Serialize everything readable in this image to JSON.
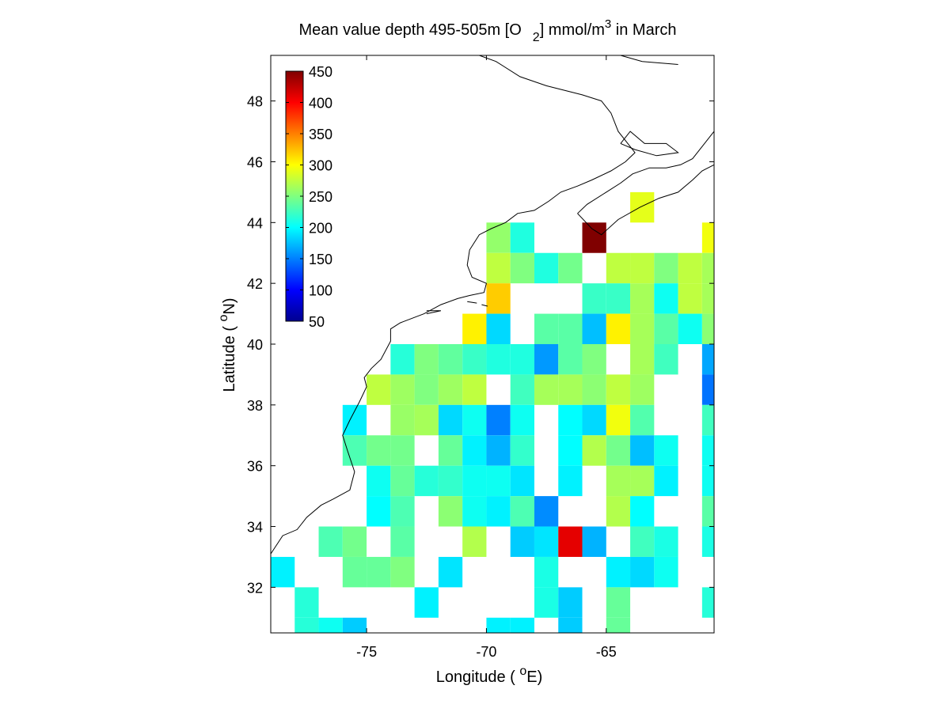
{
  "chart_data": {
    "type": "heatmap",
    "title": {
      "main": "Mean value depth 495-505m [O",
      "sub": "2",
      "units": "] mmol/m",
      "sup": "3",
      "month": " in March"
    },
    "xlabel": {
      "pre": "Longitude ( ",
      "sup": "o",
      "post": "E)"
    },
    "ylabel": {
      "pre": "Latitude ( ",
      "sup": "o",
      "post": "N)"
    },
    "xlim": [
      -79,
      -60.5
    ],
    "ylim": [
      30.5,
      49.5
    ],
    "x_ticks": [
      -75,
      -70,
      -65
    ],
    "x_tick_labels": [
      "-75",
      "-70",
      "-65"
    ],
    "y_ticks": [
      32,
      34,
      36,
      38,
      40,
      42,
      44,
      46,
      48
    ],
    "y_tick_labels": [
      "32",
      "34",
      "36",
      "38",
      "40",
      "42",
      "44",
      "46",
      "48"
    ],
    "colorbar": {
      "min": 50,
      "max": 450,
      "colormap": "jet",
      "ticks": [
        50,
        100,
        150,
        200,
        250,
        300,
        350,
        400,
        450
      ],
      "tick_labels": [
        "50",
        "100",
        "150",
        "200",
        "250",
        "300",
        "350",
        "400",
        "450"
      ],
      "placement": "top-left"
    },
    "grid_resolution_deg": 1,
    "cell_values_by_row_top_to_bottom": [
      {
        "lat_top": 45,
        "cells": [
          [
            -64,
            290
          ]
        ]
      },
      {
        "lat_top": 44,
        "cells": [
          [
            -70,
            258
          ],
          [
            -69,
            212
          ],
          [
            -66,
            450
          ],
          [
            -61,
            295
          ]
        ]
      },
      {
        "lat_top": 43,
        "cells": [
          [
            -70,
            275
          ],
          [
            -69,
            250
          ],
          [
            -68,
            212
          ],
          [
            -67,
            245
          ],
          [
            -65,
            275
          ],
          [
            -64,
            275
          ],
          [
            -63,
            250
          ],
          [
            -62,
            275
          ],
          [
            -61,
            265
          ]
        ]
      },
      {
        "lat_top": 42,
        "cells": [
          [
            -70,
            320
          ],
          [
            -66,
            222
          ],
          [
            -65,
            222
          ],
          [
            -64,
            265
          ],
          [
            -63,
            205
          ],
          [
            -62,
            275
          ],
          [
            -61,
            265
          ]
        ]
      },
      {
        "lat_top": 41,
        "cells": [
          [
            -71,
            305
          ],
          [
            -70,
            185
          ],
          [
            -68,
            235
          ],
          [
            -67,
            235
          ],
          [
            -66,
            175
          ],
          [
            -65,
            305
          ],
          [
            -64,
            265
          ],
          [
            -63,
            235
          ],
          [
            -62,
            205
          ],
          [
            -61,
            255
          ]
        ]
      },
      {
        "lat_top": 40,
        "cells": [
          [
            -74,
            215
          ],
          [
            -73,
            250
          ],
          [
            -72,
            238
          ],
          [
            -71,
            222
          ],
          [
            -70,
            212
          ],
          [
            -69,
            212
          ],
          [
            -68,
            160
          ],
          [
            -67,
            235
          ],
          [
            -66,
            250
          ],
          [
            -64,
            265
          ],
          [
            -63,
            225
          ],
          [
            -61,
            165
          ]
        ]
      },
      {
        "lat_top": 39,
        "cells": [
          [
            -75,
            275
          ],
          [
            -74,
            262
          ],
          [
            -73,
            250
          ],
          [
            -72,
            262
          ],
          [
            -71,
            275
          ],
          [
            -69,
            225
          ],
          [
            -68,
            265
          ],
          [
            -67,
            265
          ],
          [
            -66,
            255
          ],
          [
            -65,
            275
          ],
          [
            -64,
            262
          ],
          [
            -61,
            145
          ]
        ]
      },
      {
        "lat_top": 38,
        "cells": [
          [
            -76,
            195
          ],
          [
            -74,
            260
          ],
          [
            -73,
            265
          ],
          [
            -72,
            185
          ],
          [
            -71,
            205
          ],
          [
            -70,
            150
          ],
          [
            -69,
            205
          ],
          [
            -67,
            200
          ],
          [
            -66,
            185
          ],
          [
            -65,
            295
          ],
          [
            -64,
            232
          ],
          [
            -61,
            225
          ]
        ]
      },
      {
        "lat_top": 37,
        "cells": [
          [
            -76,
            230
          ],
          [
            -75,
            245
          ],
          [
            -74,
            245
          ],
          [
            -72,
            240
          ],
          [
            -71,
            195
          ],
          [
            -70,
            170
          ],
          [
            -69,
            220
          ],
          [
            -67,
            200
          ],
          [
            -66,
            270
          ],
          [
            -65,
            245
          ],
          [
            -64,
            175
          ],
          [
            -63,
            205
          ],
          [
            -61,
            205
          ]
        ]
      },
      {
        "lat_top": 36,
        "cells": [
          [
            -75,
            205
          ],
          [
            -74,
            240
          ],
          [
            -73,
            215
          ],
          [
            -72,
            220
          ],
          [
            -71,
            205
          ],
          [
            -70,
            205
          ],
          [
            -69,
            190
          ],
          [
            -67,
            195
          ],
          [
            -65,
            265
          ],
          [
            -64,
            265
          ],
          [
            -63,
            195
          ],
          [
            -61,
            205
          ]
        ]
      },
      {
        "lat_top": 35,
        "cells": [
          [
            -75,
            200
          ],
          [
            -74,
            230
          ],
          [
            -72,
            255
          ],
          [
            -71,
            205
          ],
          [
            -70,
            195
          ],
          [
            -69,
            230
          ],
          [
            -68,
            155
          ],
          [
            -65,
            270
          ],
          [
            -64,
            200
          ],
          [
            -61,
            235
          ]
        ]
      },
      {
        "lat_top": 34,
        "cells": [
          [
            -77,
            230
          ],
          [
            -76,
            245
          ],
          [
            -74,
            235
          ],
          [
            -71,
            270
          ],
          [
            -69,
            180
          ],
          [
            -68,
            190
          ],
          [
            -67,
            410
          ],
          [
            -66,
            170
          ],
          [
            -64,
            225
          ],
          [
            -63,
            210
          ],
          [
            -61,
            210
          ]
        ]
      },
      {
        "lat_top": 33,
        "cells": [
          [
            -79,
            195
          ],
          [
            -76,
            240
          ],
          [
            -75,
            240
          ],
          [
            -74,
            250
          ],
          [
            -72,
            190
          ],
          [
            -68,
            210
          ],
          [
            -65,
            195
          ],
          [
            -64,
            185
          ],
          [
            -63,
            205
          ]
        ]
      },
      {
        "lat_top": 32,
        "cells": [
          [
            -78,
            215
          ],
          [
            -73,
            195
          ],
          [
            -68,
            210
          ],
          [
            -67,
            180
          ],
          [
            -65,
            240
          ],
          [
            -61,
            215
          ]
        ]
      },
      {
        "lat_top": 31,
        "cells": [
          [
            -78,
            215
          ],
          [
            -77,
            205
          ],
          [
            -76,
            180
          ],
          [
            -70,
            195
          ],
          [
            -69,
            195
          ],
          [
            -67,
            180
          ],
          [
            -65,
            240
          ]
        ]
      }
    ]
  }
}
